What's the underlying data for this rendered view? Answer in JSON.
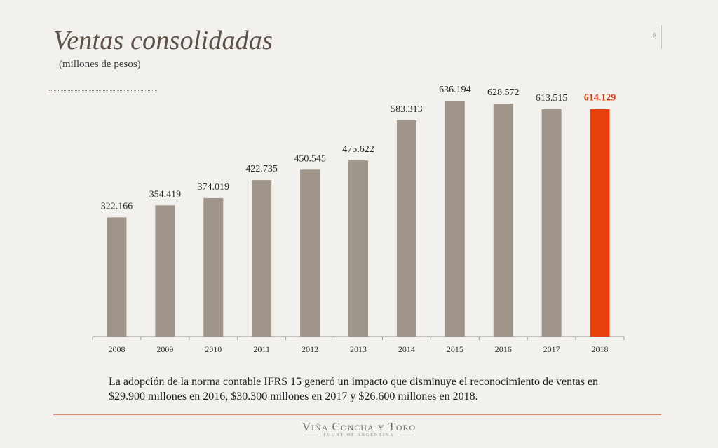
{
  "page": {
    "title": "Ventas consolidadas",
    "subtitle": "(millones de pesos)",
    "page_number": "6",
    "note": "La adopción de la norma contable IFRS 15 generó un impacto que disminuye el reconocimiento de ventas en $29.900 millones en 2016, $30.300 millones en 2017 y $26.600 millones en 2018.",
    "logo_name": "Viña Concha y Toro",
    "logo_tagline": "FOUNT OF ARGENTINA"
  },
  "chart_data": {
    "type": "bar",
    "categories": [
      "2008",
      "2009",
      "2010",
      "2011",
      "2012",
      "2013",
      "2014",
      "2015",
      "2016",
      "2017",
      "2018"
    ],
    "values": [
      322166,
      354419,
      374019,
      422735,
      450545,
      475622,
      583313,
      636194,
      628572,
      613515,
      614129
    ],
    "labels": [
      "322.166",
      "354.419",
      "374.019",
      "422.735",
      "450.545",
      "475.622",
      "583.313",
      "636.194",
      "628.572",
      "613.515",
      "614.129"
    ],
    "highlight_index": 10,
    "ylim": [
      0,
      640000
    ],
    "colors": {
      "bar": "#a0958a",
      "highlight": "#e8400c",
      "label": "#2a2a2a",
      "highlight_label": "#d83a0a",
      "axis": "#999999"
    }
  }
}
